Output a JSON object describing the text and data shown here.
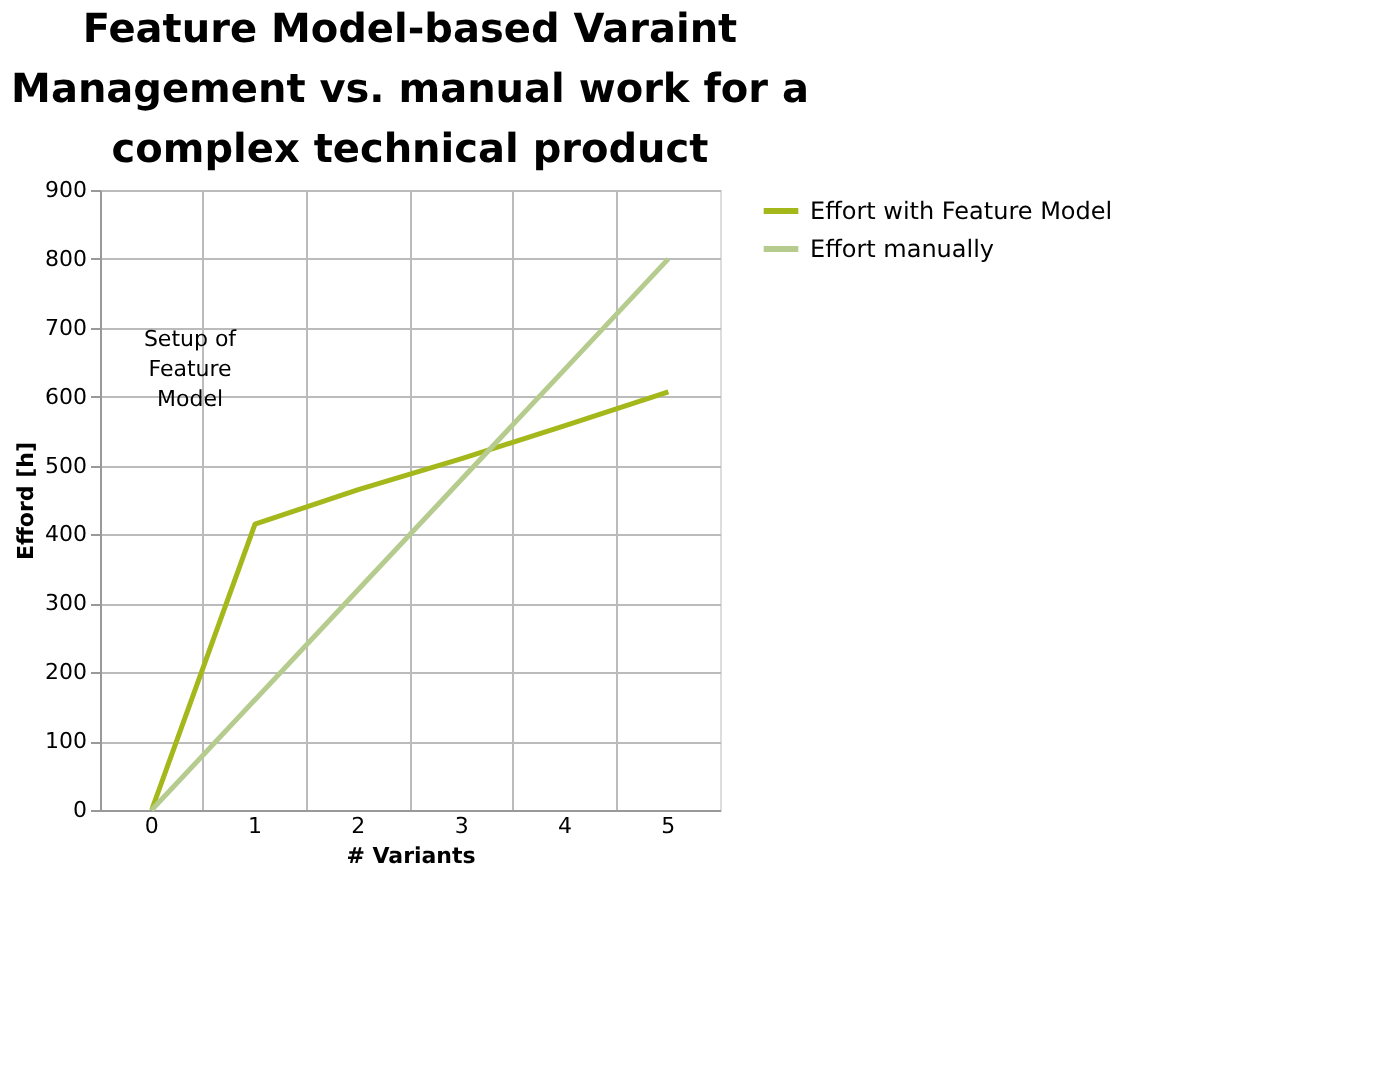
{
  "chart_data": {
    "type": "line",
    "title": "Feature Model-based Varaint Management vs. manual work for a complex technical product",
    "xlabel": "# Variants",
    "ylabel": "Efford [h]",
    "categories": [
      "0",
      "1",
      "2",
      "3",
      "4",
      "5"
    ],
    "series": [
      {
        "name": "Effort with Feature Model",
        "color": "#a4b81c",
        "values": [
          0,
          415,
          465,
          510,
          558,
          607
        ]
      },
      {
        "name": "Effort manually",
        "color": "#b5cc8e",
        "values": [
          0,
          160,
          320,
          480,
          640,
          800
        ]
      }
    ],
    "ylim": [
      0,
      900
    ],
    "yticks": [
      0,
      100,
      200,
      300,
      400,
      500,
      600,
      700,
      800,
      900
    ],
    "grid": true,
    "legend": "right",
    "marker": "none",
    "line_style": "solid",
    "annotations": [
      "Setup of Feature Model"
    ]
  }
}
